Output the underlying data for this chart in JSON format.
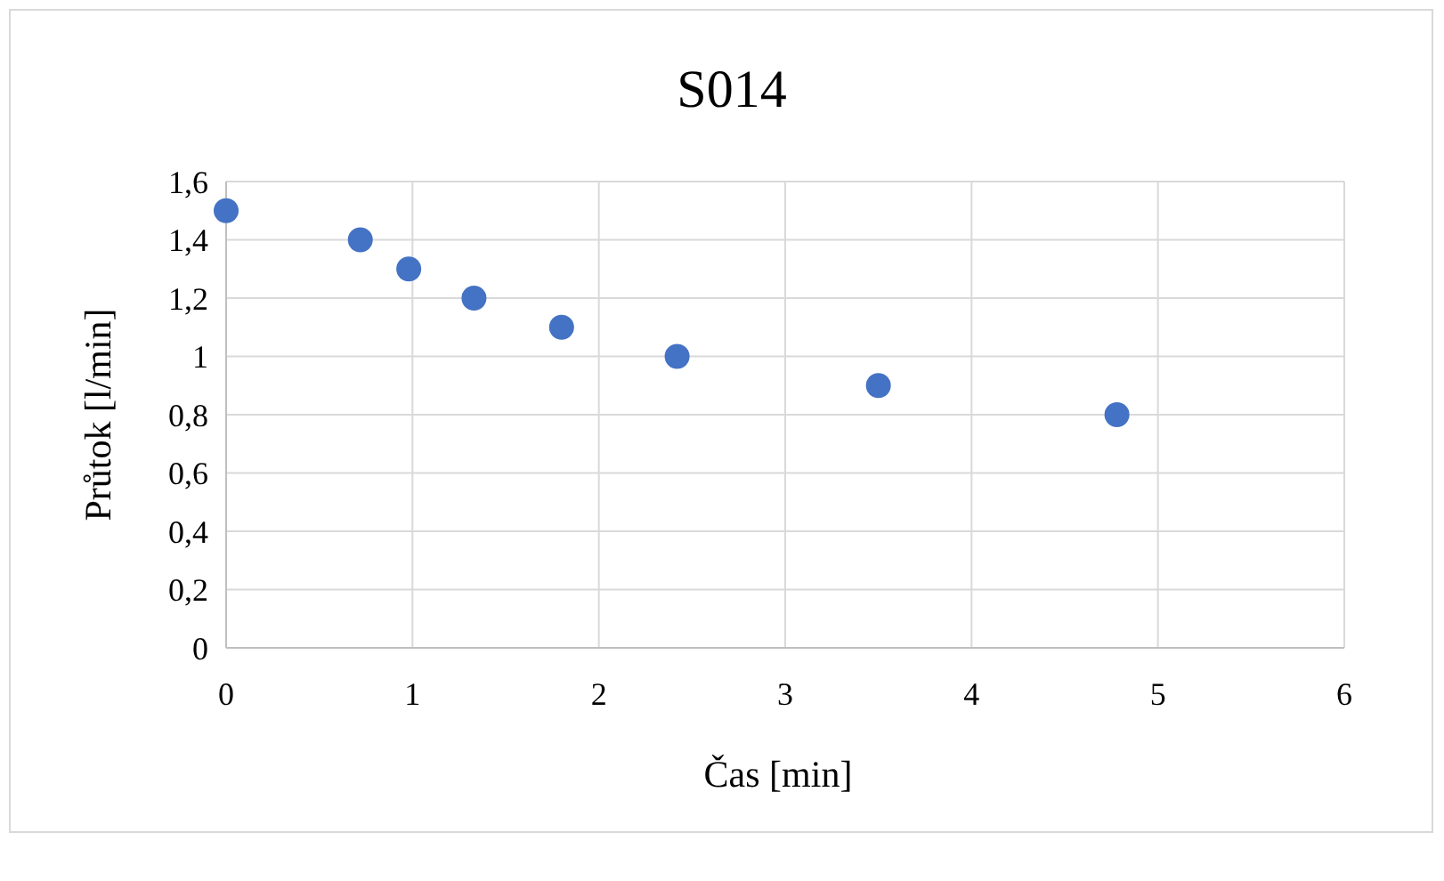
{
  "chart_data": {
    "type": "scatter",
    "title": "S014",
    "xlabel": "Čas [min]",
    "ylabel": "Průtok [l/min]",
    "x": [
      0,
      0.72,
      0.98,
      1.33,
      1.8,
      2.42,
      3.5,
      4.78
    ],
    "series": [
      {
        "color": "#4472c4",
        "values": [
          1.5,
          1.4,
          1.3,
          1.2,
          1.1,
          1.0,
          0.9,
          0.8
        ]
      }
    ],
    "xlim": [
      0,
      6
    ],
    "xticks": [
      0,
      1,
      2,
      3,
      4,
      5,
      6
    ],
    "ylim": [
      0,
      1.6
    ],
    "yticks": [
      0,
      {
        "value": 0.2,
        "label": "0,2"
      },
      {
        "value": 0.4,
        "label": "0,4"
      },
      {
        "value": 0.6,
        "label": "0,6"
      },
      {
        "value": 0.8,
        "label": "0,8"
      },
      1,
      {
        "value": 1.2,
        "label": "1,2"
      },
      {
        "value": 1.4,
        "label": "1,4"
      },
      {
        "value": 1.6,
        "label": "1,6"
      }
    ],
    "grid": true,
    "marker": "circle"
  }
}
